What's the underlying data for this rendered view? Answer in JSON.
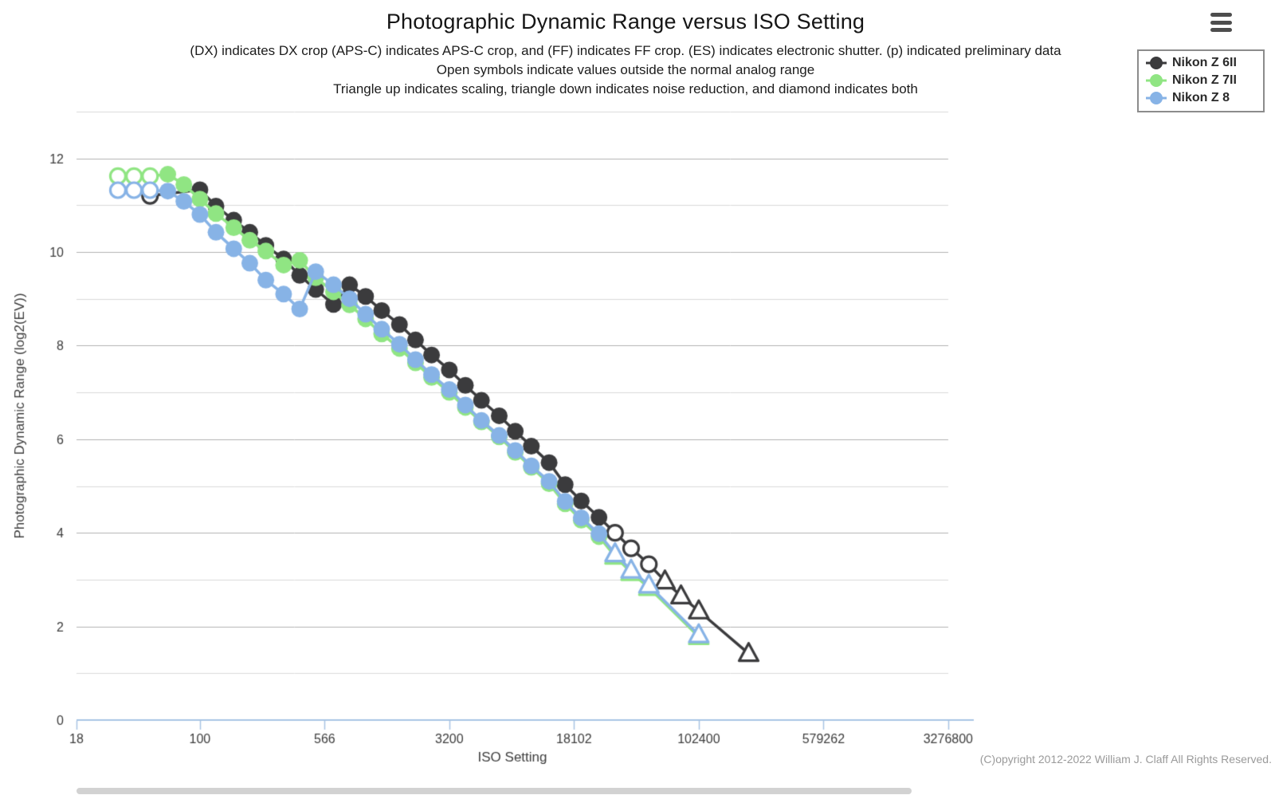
{
  "header": {
    "title": "Photographic Dynamic Range versus ISO Setting",
    "subtitle_lines": [
      "(DX) indicates DX crop (APS-C) indicates APS-C crop, and (FF) indicates FF crop. (ES) indicates electronic shutter. (p) indicated preliminary data",
      "Open symbols indicate values outside the normal analog range",
      "Triangle up indicates scaling, triangle down indicates noise reduction, and diamond indicates both"
    ]
  },
  "legend": {
    "items": [
      {
        "label": "Nikon Z 6II",
        "color": "#3b3b3d"
      },
      {
        "label": "Nikon Z 7II",
        "color": "#90e583"
      },
      {
        "label": "Nikon Z 8",
        "color": "#87b3e6"
      }
    ]
  },
  "footer": {
    "copyright": "(C)opyright 2012-2022 William J. Claff All Rights Reserved."
  },
  "chart_data": {
    "type": "line",
    "title": "Photographic Dynamic Range versus ISO Setting",
    "xlabel": "ISO Setting",
    "ylabel": "Photographic Dynamic Range (log2(EV))",
    "x_scale": "log2",
    "x_ticks": [
      18,
      100,
      566,
      3200,
      18102,
      102400,
      579262,
      3276800
    ],
    "y_ticks": [
      0,
      2,
      4,
      6,
      8,
      10,
      12
    ],
    "y_minor_gridlines": [
      1,
      3,
      5,
      7,
      9,
      11,
      13
    ],
    "ylim": [
      0,
      13.3
    ],
    "grid": true,
    "legend_position": "top-right",
    "axis_color": "#a8c4e4",
    "major_grid_color": "#b0b0b0",
    "minor_grid_color": "#dadada",
    "tick_label_color": "#3c3c3c",
    "marker_codes": {
      "0": "filled-circle",
      "1": "open-circle",
      "2": "open-triangle-up"
    },
    "series": [
      {
        "name": "Nikon Z 6II",
        "color": "#3b3b3d",
        "points": [
          [
            50,
            11.2,
            1
          ],
          [
            100,
            11.33,
            0
          ],
          [
            125,
            10.98,
            0
          ],
          [
            160,
            10.68,
            0
          ],
          [
            200,
            10.42,
            0
          ],
          [
            250,
            10.14,
            0
          ],
          [
            320,
            9.85,
            0
          ],
          [
            400,
            9.5,
            0
          ],
          [
            500,
            9.2,
            0
          ],
          [
            640,
            8.88,
            0
          ],
          [
            800,
            9.3,
            0
          ],
          [
            1000,
            9.05,
            0
          ],
          [
            1250,
            8.75,
            0
          ],
          [
            1600,
            8.45,
            0
          ],
          [
            2000,
            8.12,
            0
          ],
          [
            2500,
            7.8,
            0
          ],
          [
            3200,
            7.48,
            0
          ],
          [
            4000,
            7.15,
            0
          ],
          [
            5000,
            6.83,
            0
          ],
          [
            6400,
            6.5,
            0
          ],
          [
            8000,
            6.17,
            0
          ],
          [
            10000,
            5.85,
            0
          ],
          [
            12800,
            5.5,
            0
          ],
          [
            16000,
            5.03,
            0
          ],
          [
            20000,
            4.68,
            0
          ],
          [
            25600,
            4.33,
            0
          ],
          [
            32000,
            4.0,
            1
          ],
          [
            40000,
            3.67,
            1
          ],
          [
            51200,
            3.33,
            1
          ],
          [
            64000,
            2.97,
            2
          ],
          [
            80000,
            2.65,
            2
          ],
          [
            102400,
            2.33,
            2
          ],
          [
            204800,
            1.42,
            2
          ]
        ]
      },
      {
        "name": "Nikon Z 7II",
        "color": "#90e583",
        "points": [
          [
            32,
            11.62,
            1
          ],
          [
            40,
            11.62,
            1
          ],
          [
            50,
            11.62,
            1
          ],
          [
            64,
            11.66,
            0
          ],
          [
            80,
            11.44,
            0
          ],
          [
            100,
            11.13,
            0
          ],
          [
            125,
            10.82,
            0
          ],
          [
            160,
            10.52,
            0
          ],
          [
            200,
            10.25,
            0
          ],
          [
            250,
            10.02,
            0
          ],
          [
            320,
            9.72,
            0
          ],
          [
            400,
            9.82,
            0
          ],
          [
            500,
            9.45,
            0
          ],
          [
            640,
            9.15,
            0
          ],
          [
            800,
            8.87,
            0
          ],
          [
            1000,
            8.57,
            0
          ],
          [
            1250,
            8.25,
            0
          ],
          [
            1600,
            7.94,
            0
          ],
          [
            2000,
            7.63,
            0
          ],
          [
            2500,
            7.32,
            0
          ],
          [
            3200,
            7.0,
            0
          ],
          [
            4000,
            6.68,
            0
          ],
          [
            5000,
            6.37,
            0
          ],
          [
            6400,
            6.05,
            0
          ],
          [
            8000,
            5.72,
            0
          ],
          [
            10000,
            5.4,
            0
          ],
          [
            12800,
            5.05,
            0
          ],
          [
            16000,
            4.62,
            0
          ],
          [
            20000,
            4.27,
            0
          ],
          [
            25600,
            3.92,
            0
          ],
          [
            32000,
            3.5,
            2
          ],
          [
            40000,
            3.15,
            2
          ],
          [
            51200,
            2.83,
            2
          ],
          [
            102400,
            1.78,
            2
          ]
        ]
      },
      {
        "name": "Nikon Z 8",
        "color": "#87b3e6",
        "points": [
          [
            32,
            11.32,
            1
          ],
          [
            40,
            11.32,
            1
          ],
          [
            50,
            11.32,
            1
          ],
          [
            64,
            11.3,
            0
          ],
          [
            80,
            11.08,
            0
          ],
          [
            100,
            10.8,
            0
          ],
          [
            125,
            10.42,
            0
          ],
          [
            160,
            10.07,
            0
          ],
          [
            200,
            9.76,
            0
          ],
          [
            250,
            9.4,
            0
          ],
          [
            320,
            9.1,
            0
          ],
          [
            400,
            8.78,
            0
          ],
          [
            500,
            9.58,
            0
          ],
          [
            640,
            9.3,
            0
          ],
          [
            800,
            9.0,
            0
          ],
          [
            1000,
            8.67,
            0
          ],
          [
            1250,
            8.35,
            0
          ],
          [
            1600,
            8.03,
            0
          ],
          [
            2000,
            7.7,
            0
          ],
          [
            2500,
            7.38,
            0
          ],
          [
            3200,
            7.06,
            0
          ],
          [
            4000,
            6.73,
            0
          ],
          [
            5000,
            6.4,
            0
          ],
          [
            6400,
            6.08,
            0
          ],
          [
            8000,
            5.76,
            0
          ],
          [
            10000,
            5.43,
            0
          ],
          [
            12800,
            5.1,
            0
          ],
          [
            16000,
            4.67,
            0
          ],
          [
            20000,
            4.32,
            0
          ],
          [
            25600,
            3.98,
            0
          ],
          [
            32000,
            3.55,
            2
          ],
          [
            40000,
            3.2,
            2
          ],
          [
            51200,
            2.88,
            2
          ],
          [
            102400,
            1.82,
            2
          ]
        ]
      }
    ]
  }
}
